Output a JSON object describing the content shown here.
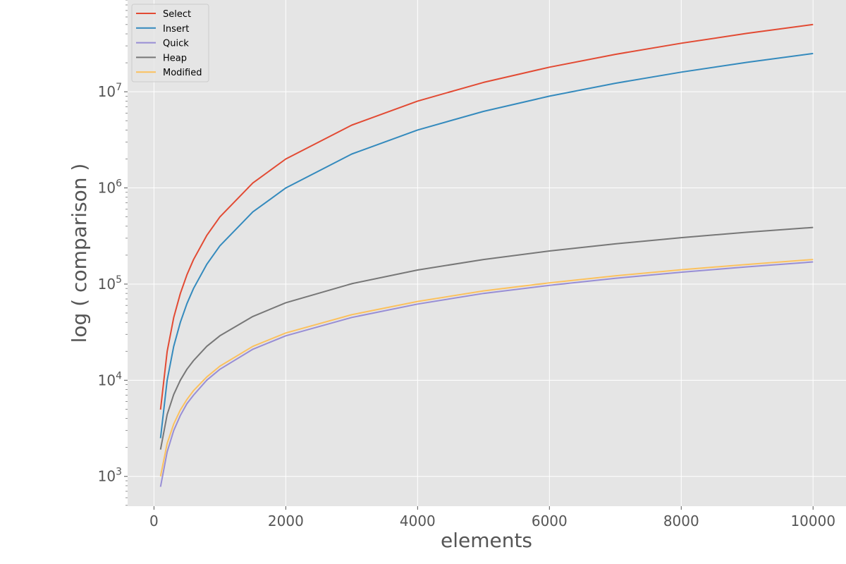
{
  "chart_data": {
    "type": "line",
    "title": "",
    "xlabel": "elements",
    "ylabel": "log ( comparison )",
    "x_scale": "linear",
    "y_scale": "log",
    "xlim": [
      -400,
      10500
    ],
    "ylim": [
      490,
      90000000
    ],
    "x_ticks": [
      0,
      2000,
      4000,
      6000,
      8000,
      10000
    ],
    "x_tick_labels": [
      "0",
      "2000",
      "4000",
      "6000",
      "8000",
      "10000"
    ],
    "y_ticks": [
      1000,
      10000,
      100000,
      1000000,
      10000000
    ],
    "y_tick_labels": [
      {
        "base": "10",
        "exp": "3"
      },
      {
        "base": "10",
        "exp": "4"
      },
      {
        "base": "10",
        "exp": "5"
      },
      {
        "base": "10",
        "exp": "6"
      },
      {
        "base": "10",
        "exp": "7"
      }
    ],
    "grid": true,
    "legend_position": "top-left",
    "x": [
      100,
      200,
      300,
      400,
      500,
      600,
      800,
      1000,
      1500,
      2000,
      3000,
      4000,
      5000,
      6000,
      7000,
      8000,
      9000,
      10000
    ],
    "series": [
      {
        "name": "Select",
        "color": "#E24A33",
        "values": [
          4950,
          19900,
          44850,
          79800,
          124750,
          179700,
          319600,
          499500,
          1124250,
          1999000,
          4498500,
          7998000,
          12497500,
          17997000,
          24496500,
          31996000,
          40495500,
          49995000
        ]
      },
      {
        "name": "Insert",
        "color": "#348ABD",
        "values": [
          2500,
          10000,
          22500,
          40000,
          62500,
          90000,
          160000,
          250000,
          562500,
          1000000,
          2250000,
          4000000,
          6250000,
          9000000,
          12250000,
          16000000,
          20250000,
          25000000
        ]
      },
      {
        "name": "Quick",
        "color": "#988ED5",
        "values": [
          780,
          1800,
          3000,
          4300,
          5700,
          7000,
          10000,
          13000,
          21000,
          29000,
          45000,
          62000,
          80000,
          97000,
          115000,
          133000,
          151000,
          170000
        ]
      },
      {
        "name": "Heap",
        "color": "#777777",
        "values": [
          1900,
          4400,
          7100,
          10000,
          13000,
          16000,
          22500,
          29000,
          46000,
          64000,
          101000,
          140000,
          180000,
          221000,
          262000,
          304000,
          346000,
          388000
        ]
      },
      {
        "name": "Modified",
        "color": "#FBC15E",
        "values": [
          1000,
          2200,
          3500,
          4900,
          6300,
          7800,
          10800,
          14000,
          22500,
          31000,
          48000,
          66000,
          85000,
          103000,
          122000,
          141000,
          160000,
          180000
        ]
      }
    ]
  }
}
